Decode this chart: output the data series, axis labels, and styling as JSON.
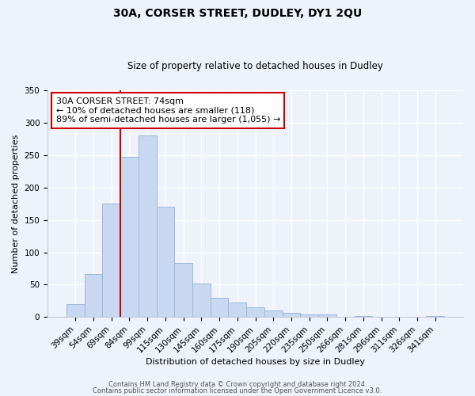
{
  "title": "30A, CORSER STREET, DUDLEY, DY1 2QU",
  "subtitle": "Size of property relative to detached houses in Dudley",
  "xlabel": "Distribution of detached houses by size in Dudley",
  "ylabel": "Number of detached properties",
  "bar_labels": [
    "39sqm",
    "54sqm",
    "69sqm",
    "84sqm",
    "99sqm",
    "115sqm",
    "130sqm",
    "145sqm",
    "160sqm",
    "175sqm",
    "190sqm",
    "205sqm",
    "220sqm",
    "235sqm",
    "250sqm",
    "266sqm",
    "281sqm",
    "296sqm",
    "311sqm",
    "326sqm",
    "341sqm"
  ],
  "bar_values": [
    20,
    67,
    175,
    247,
    281,
    170,
    84,
    52,
    30,
    22,
    15,
    10,
    7,
    4,
    4,
    1,
    2,
    0,
    0,
    0,
    2
  ],
  "bar_color": "#c8d8f0",
  "bar_edge_color": "#9ab8dc",
  "vline_color": "#cc0000",
  "vline_x_idx": 3,
  "ylim": [
    0,
    350
  ],
  "yticks": [
    0,
    50,
    100,
    150,
    200,
    250,
    300,
    350
  ],
  "annotation_text": "30A CORSER STREET: 74sqm\n← 10% of detached houses are smaller (118)\n89% of semi-detached houses are larger (1,055) →",
  "annotation_box_facecolor": "white",
  "annotation_box_edgecolor": "#cc0000",
  "footer_line1": "Contains HM Land Registry data © Crown copyright and database right 2024.",
  "footer_line2": "Contains public sector information licensed under the Open Government Licence v3.0.",
  "background_color": "#eef2fa",
  "grid_color": "white",
  "title_fontsize": 10,
  "subtitle_fontsize": 8.5,
  "ylabel_fontsize": 8,
  "xlabel_fontsize": 8,
  "tick_fontsize": 7.5,
  "annotation_fontsize": 8,
  "footer_fontsize": 6
}
